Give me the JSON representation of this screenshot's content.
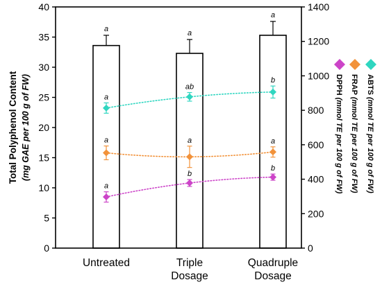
{
  "chart_data": {
    "type": "bar",
    "categories": [
      "Untreated",
      "Triple Dosage",
      "Quadruple Dosage"
    ],
    "category_labels": [
      [
        "Untreated"
      ],
      [
        "Triple",
        "Dosage"
      ],
      [
        "Quadruple",
        "Dosage"
      ]
    ],
    "bars": {
      "values": [
        33.6,
        32.3,
        35.3
      ],
      "errors": [
        1.7,
        2.3,
        2.3
      ],
      "letters": [
        "a",
        "a",
        "a"
      ]
    },
    "left_axis": {
      "label_line1": "Total Polyphenol Content",
      "label_line2": "(mg GAE per 100 g of FW)",
      "ylim": [
        0,
        40
      ],
      "ticks": [
        0,
        5,
        10,
        15,
        20,
        25,
        30,
        35,
        40
      ]
    },
    "right_axis": {
      "ylim": [
        0,
        1400
      ],
      "ticks": [
        0,
        200,
        400,
        600,
        800,
        1000,
        1200,
        1400
      ]
    },
    "series": [
      {
        "name": "ABTS",
        "unit": "(mmol TE per 100 g of FW)",
        "color": "#2fd6c0",
        "values": [
          813,
          878,
          906
        ],
        "errors": [
          30,
          25,
          35
        ],
        "letters": [
          "a",
          "ab",
          "b"
        ]
      },
      {
        "name": "FRAP",
        "unit": "(mmol TE per 100 g of FW)",
        "color": "#f2923a",
        "values": [
          553,
          530,
          558
        ],
        "errors": [
          40,
          62,
          30
        ],
        "letters": [
          "a",
          "a",
          "a"
        ]
      },
      {
        "name": "DPPH",
        "unit": "(mmol TE per 100 g of FW)",
        "color": "#cc44c8",
        "values": [
          297,
          378,
          412
        ],
        "errors": [
          30,
          20,
          18
        ],
        "letters": [
          "a",
          "b",
          "b"
        ]
      }
    ]
  }
}
